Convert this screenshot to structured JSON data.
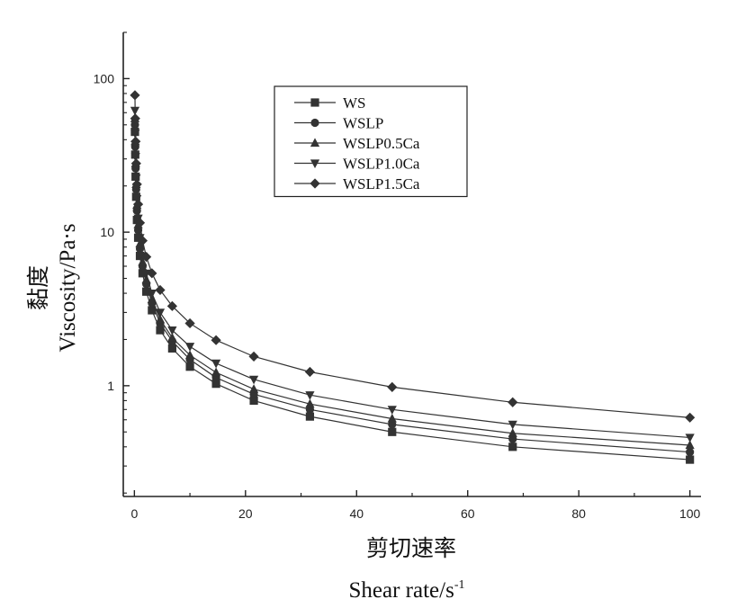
{
  "chart_data": {
    "type": "line",
    "title": "",
    "xlabel_cn": "剪切速率",
    "xlabel": "Shear rate/s",
    "xlabel_exponent": "-1",
    "ylabel_cn": "黏度",
    "ylabel": "Viscosity/Pa·s",
    "x_scale": "linear",
    "y_scale": "log",
    "xlim": [
      -2,
      102
    ],
    "ylim": [
      0.19,
      200
    ],
    "x_ticks": [
      0,
      20,
      40,
      60,
      80,
      100
    ],
    "x_tick_labels": [
      "0",
      "20",
      "40",
      "60",
      "80",
      "100"
    ],
    "y_ticks": [
      1,
      10,
      100
    ],
    "y_tick_labels": [
      "1",
      "10",
      "100"
    ],
    "grid": false,
    "legend_position": "top-center",
    "x": [
      0.1,
      0.15,
      0.22,
      0.32,
      0.46,
      0.68,
      1.0,
      1.47,
      2.15,
      3.16,
      4.64,
      6.81,
      10,
      14.7,
      21.5,
      31.6,
      46.4,
      68.1,
      100
    ],
    "series": [
      {
        "name": "WS",
        "marker": "square",
        "values": [
          45,
          32,
          23,
          17,
          12,
          9.2,
          7.0,
          5.4,
          4.1,
          3.1,
          2.3,
          1.75,
          1.33,
          1.03,
          0.8,
          0.63,
          0.5,
          0.4,
          0.33
        ]
      },
      {
        "name": "WSLP",
        "marker": "circle",
        "values": [
          50,
          36,
          26,
          19,
          13.8,
          10.3,
          7.8,
          6.0,
          4.6,
          3.45,
          2.55,
          1.95,
          1.48,
          1.13,
          0.88,
          0.7,
          0.56,
          0.45,
          0.37
        ]
      },
      {
        "name": "WSLP0.5Ca",
        "marker": "triangle-up",
        "values": [
          55,
          39,
          28,
          20.5,
          15,
          11.2,
          8.4,
          6.4,
          4.9,
          3.65,
          2.7,
          2.05,
          1.58,
          1.22,
          0.95,
          0.76,
          0.61,
          0.49,
          0.41
        ]
      },
      {
        "name": "WSLP1.0Ca",
        "marker": "triangle-down",
        "values": [
          62,
          44,
          31,
          22.5,
          16.5,
          12.3,
          9.2,
          7.0,
          5.4,
          4.0,
          3.0,
          2.3,
          1.8,
          1.4,
          1.1,
          0.87,
          0.7,
          0.56,
          0.46
        ]
      },
      {
        "name": "WSLP1.5Ca",
        "marker": "diamond",
        "values": [
          78,
          55,
          39,
          28,
          20.5,
          15.2,
          11.5,
          8.8,
          6.9,
          5.4,
          4.2,
          3.3,
          2.55,
          1.98,
          1.55,
          1.23,
          0.98,
          0.78,
          0.62
        ]
      }
    ]
  }
}
